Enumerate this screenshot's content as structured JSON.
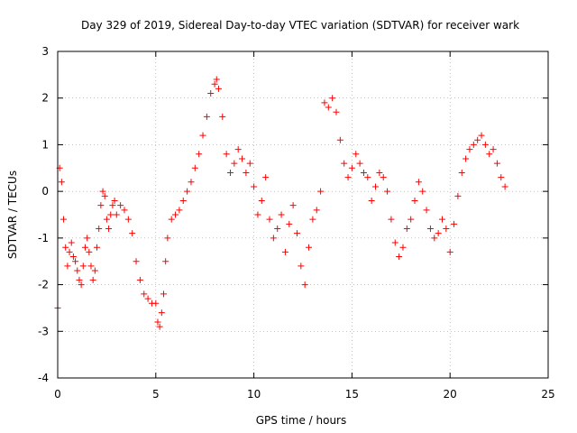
{
  "chart_data": {
    "type": "scatter",
    "title": "Day 329 of 2019, Sidereal Day-to-day VTEC variation (SDTVAR) for receiver wark",
    "xlabel": "GPS time / hours",
    "ylabel": "SDTVAR / TECUs",
    "xlim": [
      0,
      25
    ],
    "ylim": [
      -4,
      3
    ],
    "xticks": [
      0,
      5,
      10,
      15,
      20,
      25
    ],
    "xtick_labels": [
      "0",
      "5",
      "10",
      "15",
      "20",
      "25"
    ],
    "yticks": [
      -4,
      -3,
      -2,
      -1,
      0,
      1,
      2,
      3
    ],
    "ytick_labels": [
      "-4",
      "-3",
      "-2",
      "-1",
      "0",
      "1",
      "2",
      "3"
    ],
    "grid": true,
    "marker": "+",
    "color": "#ff0000",
    "series": [
      {
        "name": "SDTVAR",
        "x": [
          0.0,
          0.1,
          0.2,
          0.3,
          0.4,
          0.5,
          0.6,
          0.7,
          0.8,
          0.9,
          1.0,
          1.1,
          1.2,
          1.3,
          1.4,
          1.5,
          1.6,
          1.7,
          1.8,
          1.9,
          2.0,
          2.1,
          2.2,
          2.3,
          2.4,
          2.5,
          2.6,
          2.7,
          2.8,
          2.9,
          3.0,
          3.2,
          3.4,
          3.6,
          3.8,
          4.0,
          4.2,
          4.4,
          4.6,
          4.8,
          5.0,
          5.1,
          5.2,
          5.3,
          5.4,
          5.5,
          5.6,
          5.8,
          6.0,
          6.2,
          6.4,
          6.6,
          6.8,
          7.0,
          7.2,
          7.4,
          7.6,
          7.8,
          8.0,
          8.1,
          8.2,
          8.4,
          8.6,
          8.8,
          9.0,
          9.2,
          9.4,
          9.6,
          9.8,
          10.0,
          10.2,
          10.4,
          10.6,
          10.8,
          11.0,
          11.2,
          11.4,
          11.6,
          11.8,
          12.0,
          12.2,
          12.4,
          12.6,
          12.8,
          13.0,
          13.2,
          13.4,
          13.6,
          13.8,
          14.0,
          14.2,
          14.4,
          14.6,
          14.8,
          15.0,
          15.2,
          15.4,
          15.6,
          15.8,
          16.0,
          16.2,
          16.4,
          16.6,
          16.8,
          17.0,
          17.2,
          17.4,
          17.6,
          17.8,
          18.0,
          18.2,
          18.4,
          18.6,
          18.8,
          19.0,
          19.2,
          19.4,
          19.6,
          19.8,
          20.0,
          20.2,
          20.4,
          20.6,
          20.8,
          21.0,
          21.2,
          21.4,
          21.6,
          21.8,
          22.0,
          22.2,
          22.4,
          22.6,
          22.8
        ],
        "y": [
          -2.5,
          0.5,
          0.2,
          -0.6,
          -1.2,
          -1.6,
          -1.3,
          -1.1,
          -1.4,
          -1.5,
          -1.7,
          -1.9,
          -2.0,
          -1.6,
          -1.2,
          -1.0,
          -1.3,
          -1.6,
          -1.9,
          -1.7,
          -1.2,
          -0.8,
          -0.3,
          0.0,
          -0.1,
          -0.6,
          -0.8,
          -0.5,
          -0.3,
          -0.2,
          -0.5,
          -0.3,
          -0.4,
          -0.6,
          -0.9,
          -1.5,
          -1.9,
          -2.2,
          -2.3,
          -2.4,
          -2.4,
          -2.8,
          -2.9,
          -2.6,
          -2.2,
          -1.5,
          -1.0,
          -0.6,
          -0.5,
          -0.4,
          -0.2,
          0.0,
          0.2,
          0.5,
          0.8,
          1.2,
          1.6,
          2.1,
          2.3,
          2.4,
          2.2,
          1.6,
          0.8,
          0.4,
          0.6,
          0.9,
          0.7,
          0.4,
          0.6,
          0.1,
          -0.5,
          -0.2,
          0.3,
          -0.6,
          -1.0,
          -0.8,
          -0.5,
          -1.3,
          -0.7,
          -0.3,
          -0.9,
          -1.6,
          -2.0,
          -1.2,
          -0.6,
          -0.4,
          0.0,
          1.9,
          1.8,
          2.0,
          1.7,
          1.1,
          0.6,
          0.3,
          0.5,
          0.8,
          0.6,
          0.4,
          0.3,
          -0.2,
          0.1,
          0.4,
          0.3,
          0.0,
          -0.6,
          -1.1,
          -1.4,
          -1.2,
          -0.8,
          -0.6,
          -0.2,
          0.2,
          0.0,
          -0.4,
          -0.8,
          -1.0,
          -0.9,
          -0.6,
          -0.8,
          -1.3,
          -0.7,
          -0.1,
          0.4,
          0.7,
          0.9,
          1.0,
          1.1,
          1.2,
          1.0,
          0.8,
          0.9,
          0.6,
          0.3,
          0.1
        ]
      }
    ]
  }
}
